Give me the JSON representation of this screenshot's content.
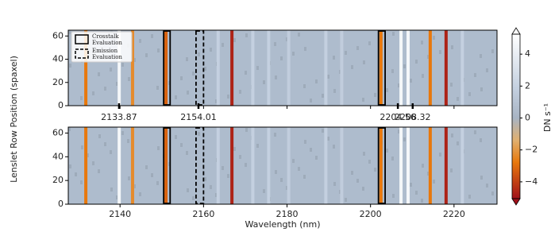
{
  "chart_data": {
    "type": "heatmap",
    "xlabel": "Wavelength (nm)",
    "ylabel": "Lenslet Row Position (spaxel)",
    "xlim": [
      2127.6,
      2230.3
    ],
    "xticks": [
      2140,
      2160,
      2180,
      2200,
      2220
    ],
    "ylim": [
      0,
      65
    ],
    "yticks": [
      0,
      20,
      40,
      60
    ],
    "x2lim": [
      2121.0,
      2229.7
    ],
    "x2ticks": [
      2133.87,
      2154.01,
      2204.56,
      2208.32
    ],
    "columns": {
      "x": [
        2131.8,
        2139.8,
        2143.0,
        2151.0,
        2163.5,
        2166.8,
        2171.8,
        2175.6,
        2180.4,
        2189.3,
        2193.1,
        2202.5,
        2207.3,
        2209.0,
        2214.3,
        2218.1,
        2222.0
      ],
      "values": [
        -3,
        5,
        -2.5,
        -3.5,
        2,
        -5,
        2,
        2,
        1.8,
        2,
        1.8,
        -3,
        5,
        5,
        -3,
        -5,
        2
      ]
    },
    "regions": [
      {
        "x": [
          2150.45,
          2152.0
        ],
        "style": "solid"
      },
      {
        "x": [
          2158.2,
          2160.0
        ],
        "style": "dashed"
      },
      {
        "x": [
          2201.9,
          2203.5
        ],
        "style": "solid"
      }
    ],
    "legend": [
      {
        "lines": [
          "Crosstalk",
          "Evaluation"
        ],
        "style": "solid"
      },
      {
        "lines": [
          "Emission",
          "Evaluation"
        ],
        "style": "dashed"
      }
    ],
    "colorbar": {
      "label": "DN s⁻¹",
      "lim": [
        -5.45,
        5.65
      ],
      "ticks": [
        {
          "value": -4,
          "label": "−4"
        },
        {
          "value": -2,
          "label": "−2"
        },
        0,
        2,
        4
      ],
      "colormap": {
        "values": [
          -5.45,
          -3,
          -1.5,
          0,
          2,
          5.65
        ],
        "colors": [
          "#a0101a",
          "#e8780c",
          "#e0b070",
          "#a8b4c4",
          "#c4d0e0",
          "#ffffff"
        ]
      }
    }
  }
}
